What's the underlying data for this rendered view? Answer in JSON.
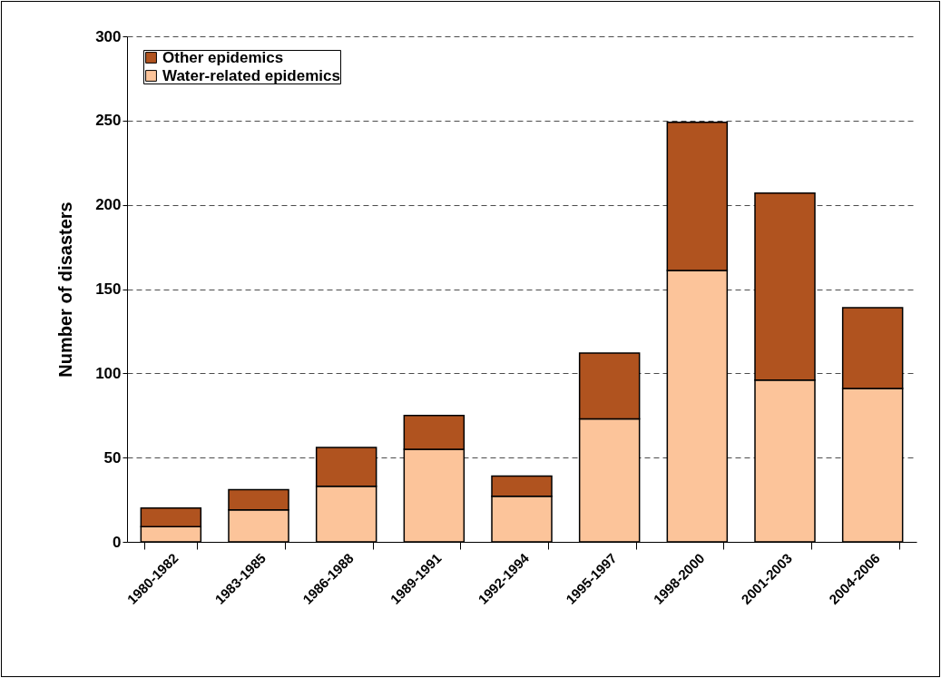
{
  "chart_data": {
    "type": "bar",
    "stacked": true,
    "ylabel": "Number of disasters",
    "categories": [
      "1980-1982",
      "1983-1985",
      "1986-1988",
      "1989-1991",
      "1992-1994",
      "1995-1997",
      "1998-2000",
      "2001-2003",
      "2004-2006"
    ],
    "series": [
      {
        "name": "Water-related epidemics",
        "color": "#fcc49a",
        "values": [
          9,
          19,
          33,
          55,
          27,
          73,
          161,
          96,
          91
        ]
      },
      {
        "name": "Other epidemics",
        "color": "#b0531f",
        "values": [
          11,
          12,
          23,
          20,
          12,
          39,
          88,
          111,
          48
        ]
      }
    ],
    "ylim": [
      0,
      300
    ],
    "yticks": [
      0,
      50,
      100,
      150,
      200,
      250,
      300
    ],
    "grid": "y",
    "legend": "top left"
  }
}
